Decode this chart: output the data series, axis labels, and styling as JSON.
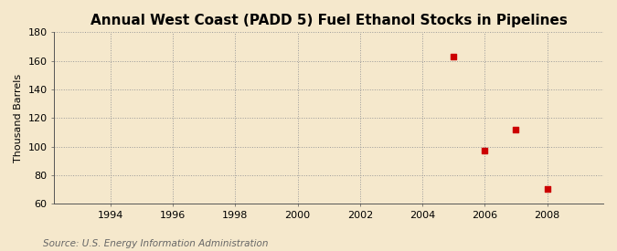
{
  "title": "Annual West Coast (PADD 5) Fuel Ethanol Stocks in Pipelines",
  "ylabel": "Thousand Barrels",
  "source": "Source: U.S. Energy Information Administration",
  "background_color": "#f5e8cc",
  "plot_background_color": "#f5e8cc",
  "x_data": [
    2005,
    2006,
    2007,
    2008
  ],
  "y_data": [
    163,
    97,
    112,
    70
  ],
  "marker_color": "#cc0000",
  "marker_size": 5,
  "xlim": [
    1992.2,
    2009.8
  ],
  "ylim": [
    60,
    180
  ],
  "xticks": [
    1994,
    1996,
    1998,
    2000,
    2002,
    2004,
    2006,
    2008
  ],
  "yticks": [
    60,
    80,
    100,
    120,
    140,
    160,
    180
  ],
  "title_fontsize": 11,
  "label_fontsize": 8,
  "tick_fontsize": 8,
  "source_fontsize": 7.5
}
